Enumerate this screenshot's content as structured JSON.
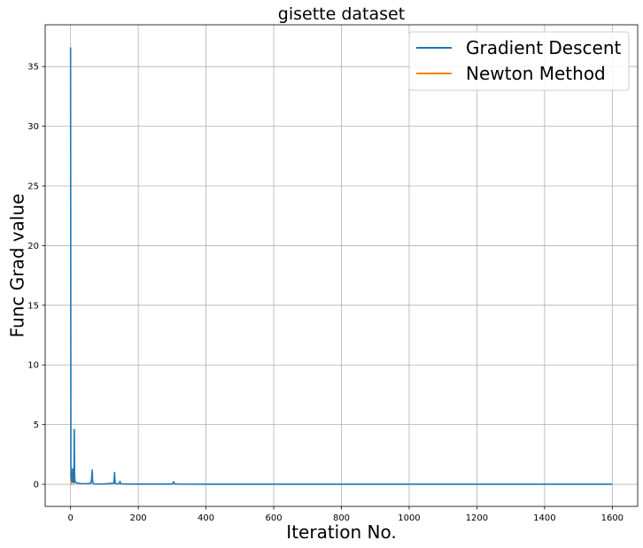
{
  "chart_data": {
    "type": "line",
    "title": "gisette dataset",
    "xlabel": "Iteration No.",
    "ylabel": "Func Grad value",
    "xlim": [
      -75,
      1675
    ],
    "ylim": [
      -1.85,
      38.5
    ],
    "xticks": [
      0,
      200,
      400,
      600,
      800,
      1000,
      1200,
      1400,
      1600
    ],
    "yticks": [
      0,
      5,
      10,
      15,
      20,
      25,
      30,
      35
    ],
    "grid": true,
    "legend_position": "top-right",
    "series": [
      {
        "name": "Gradient Descent",
        "color": "#1f77b4",
        "x": [
          0,
          1,
          2,
          3,
          4,
          5,
          6,
          7,
          8,
          9,
          10,
          11,
          12,
          13,
          14,
          16,
          20,
          30,
          50,
          60,
          62,
          64,
          65,
          66,
          68,
          70,
          100,
          128,
          130,
          131,
          132,
          134,
          140,
          145,
          146,
          148,
          155,
          200,
          300,
          303,
          305,
          307,
          320,
          400,
          600,
          800,
          1000,
          1200,
          1400,
          1600
        ],
        "values": [
          36.6,
          1.5,
          0.6,
          0.3,
          0.5,
          0.2,
          1.3,
          0.3,
          0.2,
          0.15,
          0.1,
          4.6,
          0.8,
          0.3,
          0.2,
          0.15,
          0.1,
          0.06,
          0.05,
          0.1,
          0.4,
          1.2,
          0.3,
          0.1,
          0.05,
          0.04,
          0.03,
          0.1,
          1.0,
          0.3,
          0.1,
          0.05,
          0.04,
          0.1,
          0.25,
          0.05,
          0.03,
          0.02,
          0.02,
          0.15,
          0.2,
          0.03,
          0.02,
          0.01,
          0.01,
          0.01,
          0.01,
          0.01,
          0.01,
          0.01
        ]
      },
      {
        "name": "Newton Method",
        "color": "#ff7f0e",
        "x": [
          0,
          1,
          2,
          3,
          4,
          5
        ],
        "values": [
          1.0,
          0.5,
          0.15,
          0.02,
          0.005,
          0.001
        ]
      }
    ]
  }
}
